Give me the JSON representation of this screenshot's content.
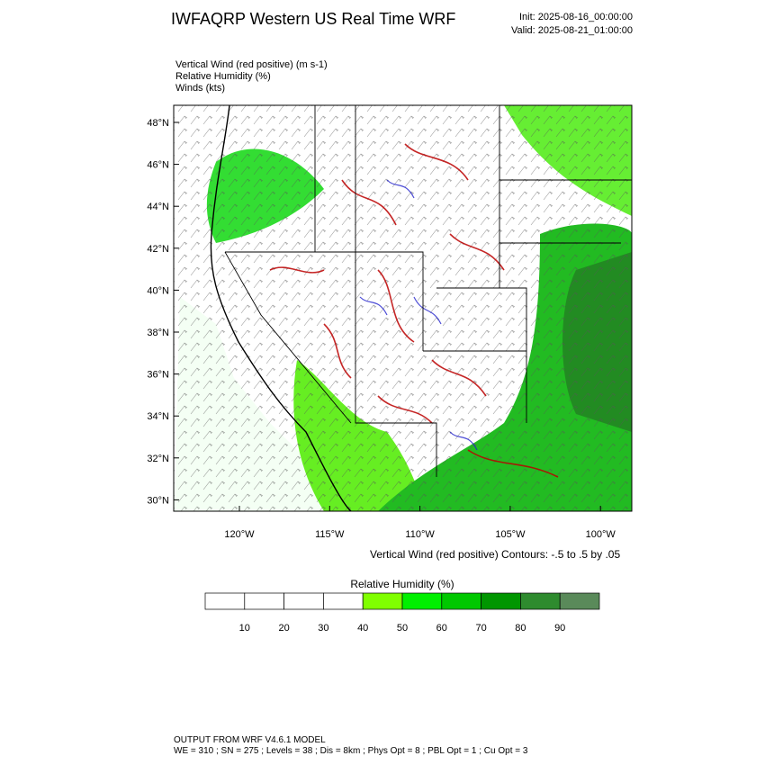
{
  "header": {
    "title": "IWFAQRP Western US Real Time WRF",
    "init": "Init: 2025-08-16_00:00:00",
    "valid": "Valid: 2025-08-21_01:00:00"
  },
  "fields": [
    "Vertical Wind (red positive)   (m s-1)",
    "Relative Humidity   (%)",
    "Winds   (kts)"
  ],
  "lat_labels": [
    "48°N",
    "46°N",
    "44°N",
    "42°N",
    "40°N",
    "38°N",
    "36°N",
    "34°N",
    "32°N",
    "30°N"
  ],
  "lon_labels": [
    "120°W",
    "115°W",
    "110°W",
    "105°W",
    "100°W"
  ],
  "contour_note": "Vertical Wind (red positive) Contours: -.5 to .5 by .05",
  "colorbar": {
    "title": "Relative Humidity   (%)",
    "colors": [
      "#ffffff",
      "#ffffff",
      "#ffffff",
      "#ffffff",
      "#80ff00",
      "#00f000",
      "#00c800",
      "#009600",
      "#2e8b2e",
      "#5a8a5a"
    ],
    "labels": [
      "10",
      "20",
      "30",
      "40",
      "50",
      "60",
      "70",
      "80",
      "90"
    ]
  },
  "footer": [
    "OUTPUT FROM WRF V4.6.1 MODEL",
    "WE = 310 ; SN = 275 ; Levels = 38 ; Dis = 8km ; Phys Opt = 8 ; PBL Opt = 1 ; Cu Opt = 3"
  ]
}
